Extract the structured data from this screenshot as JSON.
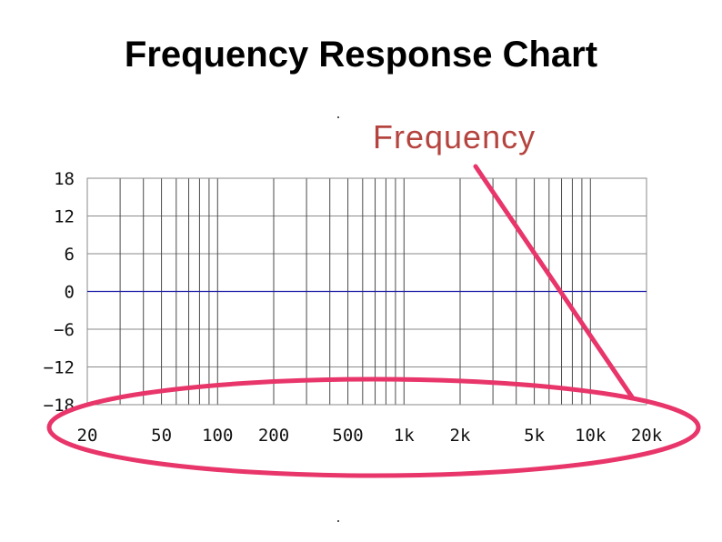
{
  "title": "Frequency Response Chart",
  "annotation": {
    "text": "Frequency",
    "color": "#b5443f"
  },
  "highlight_color": "#e8356a",
  "chart_data": {
    "type": "line",
    "title": "Frequency Response Chart",
    "x_scale": "log",
    "x_range": [
      20,
      20000
    ],
    "y_range": [
      -18,
      18
    ],
    "grid": true,
    "x_tick_labels": [
      {
        "value": 20,
        "label": "20"
      },
      {
        "value": 50,
        "label": "50"
      },
      {
        "value": 100,
        "label": "100"
      },
      {
        "value": 200,
        "label": "200"
      },
      {
        "value": 500,
        "label": "500"
      },
      {
        "value": 1000,
        "label": "1k"
      },
      {
        "value": 2000,
        "label": "2k"
      },
      {
        "value": 5000,
        "label": "5k"
      },
      {
        "value": 10000,
        "label": "10k"
      },
      {
        "value": 20000,
        "label": "20k"
      }
    ],
    "y_ticks": [
      {
        "value": 18,
        "label": "18"
      },
      {
        "value": 12,
        "label": "12"
      },
      {
        "value": 6,
        "label": "6"
      },
      {
        "value": 0,
        "label": "0"
      },
      {
        "value": -6,
        "label": "−6"
      },
      {
        "value": -12,
        "label": "−12"
      },
      {
        "value": -18,
        "label": "−18"
      }
    ],
    "series": [
      {
        "x": [
          20,
          20000
        ],
        "y": [
          0,
          0
        ],
        "color": "#1f1fa8"
      }
    ],
    "annotations": [
      {
        "text": "Frequency",
        "target": "x-axis tick labels"
      }
    ]
  }
}
